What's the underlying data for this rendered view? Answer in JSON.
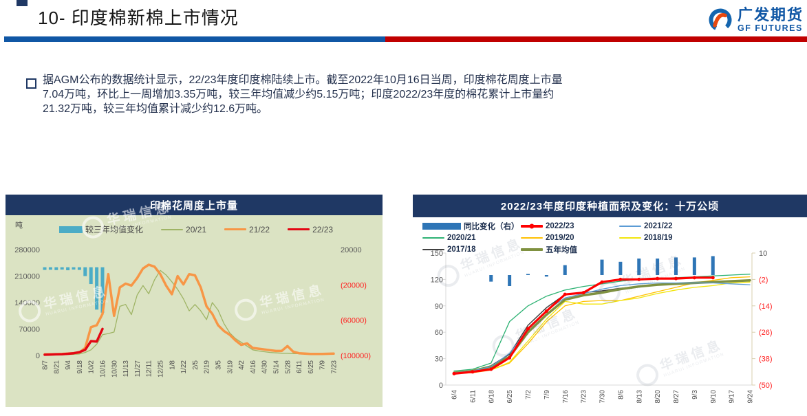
{
  "slide": {
    "page_title": "10- 印度棉新棉上市情况",
    "logo": {
      "cn": "广发期货",
      "en": "GF FUTURES"
    },
    "bullet": {
      "lines": [
        "据AGM公布的数据统计显示，22/23年度印度棉陆续上市。截至2022年10月16日当周，印度棉花周度上市量",
        "7.04万吨，环比上一周增加3.35万吨，较三年均值减少约5.15万吨；印度2022/23年度的棉花累计上市量约",
        "21.32万吨，较三年均值累计减少约12.6万吨。"
      ]
    },
    "watermark": {
      "cn": "华瑞信息",
      "en": "HUARUI INFORMATION"
    },
    "colors": {
      "header_navy": "#1f3864",
      "rule_blue": "#1057a5",
      "rule_red": "#c00000",
      "left_chart_bg": "#dbe3c3",
      "logo_blue": "#1057a5",
      "negative_tick_red": "#ff1f1f"
    }
  },
  "chart_data": [
    {
      "type": "bar",
      "subtype": "combo-bar-line",
      "title": "印棉花周度上市量",
      "unit": "吨",
      "x_label_every": 2,
      "x": [
        "8/7",
        "8/14",
        "8/21",
        "8/28",
        "9/4",
        "9/11",
        "9/18",
        "9/25",
        "10/2",
        "10/9",
        "10/16",
        "10/23",
        "10/30",
        "11/6",
        "11/13",
        "11/20",
        "11/27",
        "12/4",
        "12/11",
        "12/18",
        "12/25",
        "1/1",
        "1/8",
        "1/15",
        "1/22",
        "1/29",
        "2/5",
        "2/12",
        "2/19",
        "2/26",
        "3/5",
        "3/12",
        "3/19",
        "3/26",
        "4/2",
        "4/9",
        "4/16",
        "4/23",
        "4/30",
        "5/7",
        "5/14",
        "5/21",
        "5/28",
        "6/4",
        "6/11",
        "6/18",
        "6/25",
        "7/2",
        "7/9",
        "7/16",
        "7/23"
      ],
      "axes": {
        "left": {
          "min": 0,
          "max": 280000,
          "ticks": [
            {
              "v": 280000,
              "label": "280000"
            },
            {
              "v": 210000,
              "label": "210000"
            },
            {
              "v": 140000,
              "label": "140000"
            },
            {
              "v": 70000,
              "label": "70000"
            },
            {
              "v": 0,
              "label": "0"
            }
          ]
        },
        "right": {
          "min": -100000,
          "max": 20000,
          "ticks": [
            {
              "v": 20000,
              "label": "20000"
            },
            {
              "v": -20000,
              "label": "(20000)"
            },
            {
              "v": -60000,
              "label": "(60000)"
            },
            {
              "v": -100000,
              "label": "(100000)"
            }
          ]
        }
      },
      "legend_order": [
        "较三年均值变化",
        "20/21",
        "21/22",
        "22/23"
      ],
      "series": [
        {
          "name": "较三年均值变化",
          "type": "bar",
          "axis": "right",
          "color": "#4bacc6",
          "values": [
            -3000,
            -2800,
            -3200,
            -2600,
            -3400,
            -2600,
            -3000,
            -10000,
            -19000,
            -48000,
            -51500,
            null,
            null,
            null,
            null,
            null,
            null,
            null,
            null,
            null,
            null,
            null,
            null,
            null,
            null,
            null,
            null,
            null,
            null,
            null,
            null,
            null,
            null,
            null,
            null,
            null,
            null,
            null,
            null,
            null,
            null,
            null,
            null,
            null,
            null,
            null,
            null,
            null,
            null,
            null,
            null
          ]
        },
        {
          "name": "20/21",
          "type": "line",
          "axis": "left",
          "color": "#9fb465",
          "width": 1.3,
          "values": [
            1500,
            1500,
            2000,
            2000,
            2500,
            3000,
            4000,
            8000,
            15000,
            30000,
            55000,
            58000,
            62000,
            130000,
            135000,
            108000,
            160000,
            185000,
            163000,
            200000,
            225000,
            213000,
            195000,
            175000,
            150000,
            118000,
            135000,
            118000,
            95000,
            140000,
            120000,
            85000,
            60000,
            45000,
            35000,
            25000,
            15000,
            12000,
            10000,
            8000,
            7000,
            6000,
            6000,
            5000,
            5000,
            4500,
            4000,
            4000,
            3500,
            3200,
            3000
          ]
        },
        {
          "name": "21/22",
          "type": "line",
          "axis": "left",
          "color": "#f79646",
          "width": 3.5,
          "values": [
            3000,
            3000,
            3500,
            4000,
            5000,
            6000,
            8000,
            20000,
            75000,
            80000,
            110000,
            215000,
            105000,
            180000,
            190000,
            185000,
            205000,
            230000,
            240000,
            235000,
            215000,
            185000,
            162000,
            210000,
            188000,
            215000,
            212000,
            180000,
            130000,
            110000,
            80000,
            65000,
            55000,
            40000,
            28000,
            32000,
            20000,
            18000,
            16000,
            14000,
            12000,
            12000,
            25000,
            10000,
            6000,
            5000,
            4000,
            4000,
            4000,
            4500,
            5000
          ]
        },
        {
          "name": "22/23",
          "type": "line",
          "axis": "left",
          "color": "#e30613",
          "width": 3.5,
          "values": [
            2000,
            2500,
            3000,
            3500,
            4500,
            6000,
            9000,
            15000,
            38000,
            36900,
            70400,
            null,
            null,
            null,
            null,
            null,
            null,
            null,
            null,
            null,
            null,
            null,
            null,
            null,
            null,
            null,
            null,
            null,
            null,
            null,
            null,
            null,
            null,
            null,
            null,
            null,
            null,
            null,
            null,
            null,
            null,
            null,
            null,
            null,
            null,
            null,
            null,
            null,
            null,
            null,
            null
          ]
        }
      ]
    },
    {
      "type": "bar",
      "subtype": "combo-bar-line",
      "title": "2022/23年度印度种植面积及变化：十万公顷",
      "unit": "",
      "x_label_every": 1,
      "x": [
        "6/4",
        "6/11",
        "6/18",
        "6/25",
        "7/2",
        "7/9",
        "7/16",
        "7/23",
        "7/30",
        "8/6",
        "8/13",
        "8/20",
        "8/27",
        "9/3",
        "9/10",
        "9/17",
        "9/24"
      ],
      "axes": {
        "left": {
          "min": 0,
          "max": 150,
          "ticks": [
            {
              "v": 150,
              "label": "150"
            },
            {
              "v": 120,
              "label": "120"
            },
            {
              "v": 90,
              "label": "90"
            },
            {
              "v": 60,
              "label": "60"
            },
            {
              "v": 30,
              "label": "30"
            },
            {
              "v": 0,
              "label": "0"
            }
          ]
        },
        "right": {
          "min": -50,
          "max": 10,
          "ticks": [
            {
              "v": 10,
              "label": "10"
            },
            {
              "v": -2,
              "label": "(2)"
            },
            {
              "v": -14,
              "label": "(14)"
            },
            {
              "v": -26,
              "label": "(26)"
            },
            {
              "v": -38,
              "label": "(38)"
            },
            {
              "v": -50,
              "label": "(50)"
            }
          ]
        }
      },
      "legend_order": [
        "同比变化（右）",
        "2022/23",
        "2021/22",
        "2020/21",
        "2019/20",
        "2018/19",
        "2017/18",
        "五年均值"
      ],
      "series": [
        {
          "name": "同比变化（右）",
          "type": "bar",
          "axis": "right",
          "color": "#2e75b6",
          "values": [
            null,
            null,
            -3,
            -5,
            0.5,
            -0.7,
            4.5,
            null,
            7,
            6,
            7.5,
            7.5,
            8,
            8,
            8.6,
            null,
            null
          ]
        },
        {
          "name": "2020/21",
          "type": "line",
          "axis": "left",
          "color": "#2db273",
          "width": 1.3,
          "values": [
            16,
            18,
            25,
            72,
            90,
            101,
            108,
            112,
            115,
            118,
            120,
            121,
            122,
            123,
            124,
            125,
            126
          ]
        },
        {
          "name": "2019/20",
          "type": "line",
          "axis": "left",
          "color": "#ffc000",
          "width": 1.3,
          "values": [
            13,
            14,
            17,
            25,
            47,
            72,
            90,
            95,
            96,
            96,
            101,
            106,
            111,
            116,
            119,
            122,
            123
          ]
        },
        {
          "name": "2018/19",
          "type": "line",
          "axis": "left",
          "color": "#f2e50b",
          "width": 1.3,
          "values": [
            13,
            15,
            17,
            26,
            50,
            75,
            95,
            92,
            92,
            96,
            99,
            104,
            108,
            111,
            113,
            116,
            117
          ]
        },
        {
          "name": "2017/18",
          "type": "line",
          "axis": "left",
          "color": "#404040",
          "width": 1.5,
          "values": [
            14,
            16,
            22,
            35,
            68,
            88,
            103,
            105,
            107,
            110,
            112,
            114,
            115,
            116,
            117,
            118,
            119
          ]
        },
        {
          "name": "五年均值",
          "type": "line",
          "axis": "left",
          "color": "#7f9140",
          "width": 3.5,
          "values": [
            14,
            16,
            21,
            32,
            60,
            80,
            97,
            102,
            105,
            109,
            112,
            114,
            115,
            116,
            117,
            118,
            119
          ]
        },
        {
          "name": "2021/22",
          "type": "line",
          "axis": "left",
          "color": "#5b9bd5",
          "width": 1.3,
          "values": [
            14,
            16,
            21,
            36,
            63,
            85,
            99,
            104,
            109,
            113,
            115,
            116,
            116,
            116,
            116,
            115,
            114
          ]
        },
        {
          "name": "2022/23",
          "type": "line",
          "axis": "left",
          "color": "#ff0000",
          "width": 3.2,
          "marker": true,
          "values": [
            13,
            15,
            18,
            31,
            64,
            84,
            103,
            105,
            117,
            120,
            120,
            121,
            121,
            122,
            122,
            null,
            null
          ]
        }
      ]
    }
  ]
}
